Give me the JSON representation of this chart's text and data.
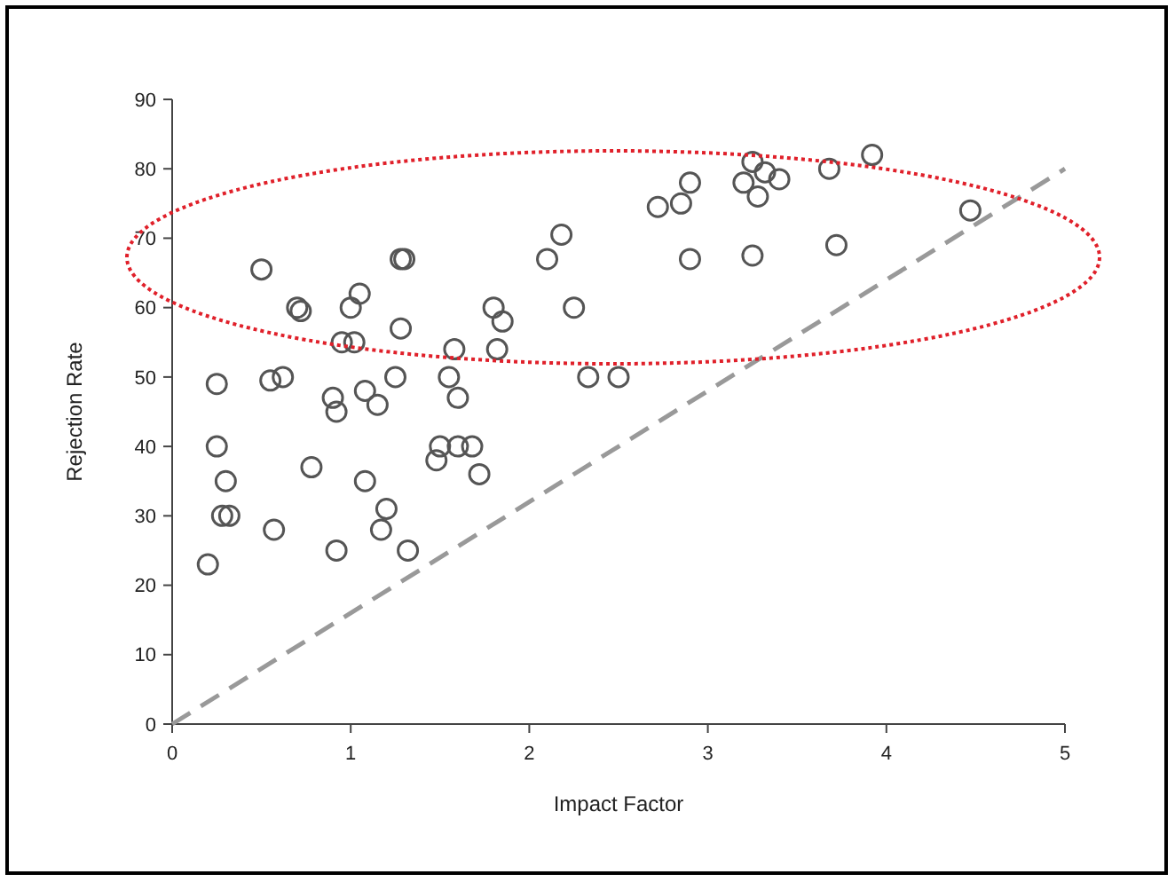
{
  "chart_data": {
    "type": "scatter",
    "xlabel": "Impact Factor",
    "ylabel": "Rejection Rate",
    "xlim": [
      0,
      5
    ],
    "xticks": [
      0,
      1,
      2,
      3,
      4,
      5
    ],
    "ylim": [
      0,
      90
    ],
    "yticks": [
      0,
      10,
      20,
      30,
      40,
      50,
      60,
      70,
      80,
      90
    ],
    "grid": false,
    "series": [
      {
        "marker": "circle",
        "color": "#555555",
        "x": [
          0.2,
          0.25,
          0.25,
          0.28,
          0.3,
          0.32,
          0.5,
          0.55,
          0.57,
          0.62,
          0.7,
          0.72,
          0.78,
          0.9,
          0.92,
          0.92,
          0.95,
          1.0,
          1.02,
          1.05,
          1.08,
          1.08,
          1.15,
          1.17,
          1.2,
          1.25,
          1.28,
          1.28,
          1.3,
          1.32,
          1.48,
          1.5,
          1.55,
          1.58,
          1.6,
          1.6,
          1.68,
          1.72,
          1.8,
          1.82,
          1.85,
          2.1,
          2.18,
          2.25,
          2.33,
          2.5,
          2.72,
          2.85,
          2.9,
          2.9,
          3.2,
          3.25,
          3.25,
          3.28,
          3.32,
          3.4,
          3.68,
          3.72,
          3.92,
          4.47
        ],
        "values": [
          23,
          49,
          40,
          30,
          35,
          30,
          65.5,
          49.5,
          28,
          50,
          60,
          59.5,
          37,
          47,
          45,
          25,
          55,
          60,
          55,
          62,
          48,
          35,
          46,
          28,
          31,
          50,
          57,
          67,
          67,
          25,
          38,
          40,
          50,
          54,
          47,
          40,
          40,
          36,
          60,
          54,
          58,
          67,
          70.5,
          60,
          50,
          50,
          74.5,
          75,
          78,
          67,
          78,
          81,
          67.5,
          76,
          79.5,
          78.5,
          80,
          69,
          82,
          74
        ]
      },
      {
        "type": "line",
        "color": "#999999",
        "line_style": "dashed",
        "x": [
          0,
          5
        ],
        "values": [
          0,
          80
        ]
      }
    ]
  }
}
